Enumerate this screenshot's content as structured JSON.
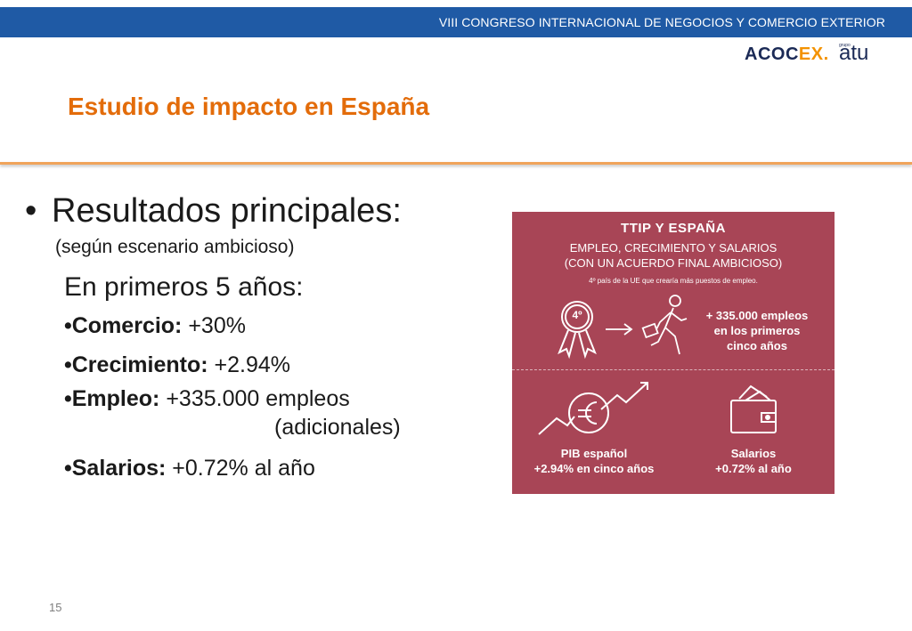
{
  "header": {
    "congress": "VIII CONGRESO INTERNACIONAL DE NEGOCIOS Y COMERCIO EXTERIOR",
    "logo_acoc": "ACOC",
    "logo_ex": "EX.",
    "logo_grupo": "grupo",
    "logo_atu": "atu"
  },
  "slide": {
    "title": "Estudio de impacto en España",
    "bullet_marker": "•",
    "main_bullet": "Resultados principales:",
    "scenario": "(según escenario ambicioso)",
    "period": "En primeros 5 años:",
    "items": [
      {
        "label": "•Comercio:",
        "value": " +30%"
      },
      {
        "label": "•Crecimiento:",
        "value": " +2.94%"
      },
      {
        "label": "•Empleo:",
        "value": " +335.000 empleos"
      },
      {
        "label": "•Salarios:",
        "value": " +0.72% al año"
      }
    ],
    "employment_continuation": "(adicionales)",
    "page_number": "15"
  },
  "infographic": {
    "title": "TTIP Y ESPAÑA",
    "subtitle_line1": "EMPLEO, CRECIMIENTO Y SALARIOS",
    "subtitle_line2": "(CON UN ACUERDO FINAL AMBICIOSO)",
    "note": "4º país de la UE que crearía más puestos de empleo.",
    "rank_badge": "4º",
    "employment_line1": "+ 335.000 empleos",
    "employment_line2": "en los primeros",
    "employment_line3": "cinco años",
    "gdp_line1": "PIB español",
    "gdp_line2": "+2.94% en cinco años",
    "wages_line1": "Salarios",
    "wages_line2": "+0.72% al año",
    "icons": [
      "medal-icon",
      "arrow-right-icon",
      "walking-person-briefcase-icon",
      "euro-growth-icon",
      "wallet-icon"
    ],
    "background_color": "#a84556"
  }
}
